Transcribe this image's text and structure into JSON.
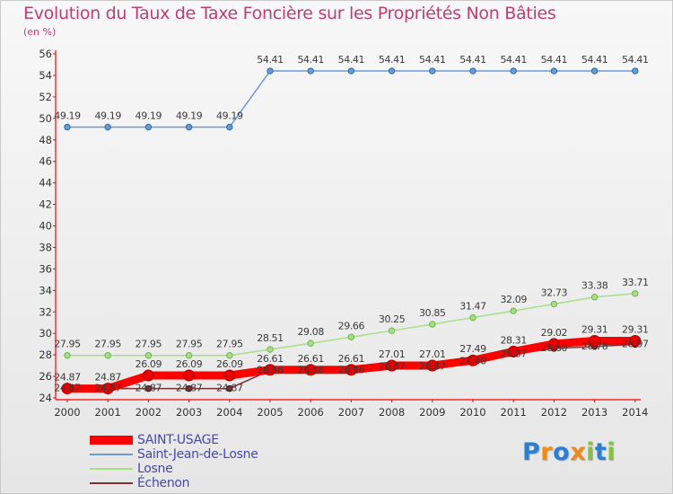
{
  "title": "Evolution du Taux de Taxe Foncière sur les Propriétés Non Bâties",
  "unit_label": "(en %)",
  "chart_data": {
    "type": "line",
    "title": "Evolution du Taux de Taxe Foncière sur les Propriétés Non Bâties",
    "ylabel": "(en %)",
    "xlabel": "",
    "categories": [
      "2000",
      "2001",
      "2002",
      "2003",
      "2004",
      "2005",
      "2006",
      "2007",
      "2008",
      "2009",
      "2010",
      "2011",
      "2012",
      "2013",
      "2014"
    ],
    "ylim": [
      24,
      56
    ],
    "yticks": [
      "24",
      "26",
      "28",
      "30",
      "32",
      "34",
      "36",
      "38",
      "40",
      "42",
      "44",
      "46",
      "48",
      "50",
      "52",
      "54",
      "56"
    ],
    "grid": false,
    "legend_position": "bottom-left",
    "series": [
      {
        "name": "SAINT-USAGE",
        "color": "#ff0000",
        "values": [
          24.87,
          24.87,
          26.09,
          26.09,
          26.09,
          26.61,
          26.61,
          26.61,
          27.01,
          27.01,
          27.49,
          28.31,
          29.02,
          29.31,
          29.31
        ],
        "labels": [
          "24.87",
          "24.87",
          "26.09",
          "26.09",
          "26.09",
          "26.61",
          "26.61",
          "26.61",
          "27.01",
          "27.01",
          "27.49",
          "28.31",
          "29.02",
          "29.31",
          "29.31"
        ]
      },
      {
        "name": "Saint-Jean-de-Losne",
        "color": "#6a9cd4",
        "values": [
          49.19,
          49.19,
          49.19,
          49.19,
          49.19,
          54.41,
          54.41,
          54.41,
          54.41,
          54.41,
          54.41,
          54.41,
          54.41,
          54.41,
          54.41
        ],
        "labels": [
          "49.19",
          "49.19",
          "49.19",
          "49.19",
          "49.19",
          "54.41",
          "54.41",
          "54.41",
          "54.41",
          "54.41",
          "54.41",
          "54.41",
          "54.41",
          "54.41",
          "54.41"
        ]
      },
      {
        "name": "Losne",
        "color": "#a6e086",
        "values": [
          27.95,
          27.95,
          27.95,
          27.95,
          27.95,
          28.51,
          29.08,
          29.66,
          30.25,
          30.85,
          31.47,
          32.09,
          32.73,
          33.38,
          33.71
        ],
        "labels": [
          "27.95",
          "27.95",
          "27.95",
          "27.95",
          "27.95",
          "28.51",
          "29.08",
          "29.66",
          "30.25",
          "30.85",
          "31.47",
          "32.09",
          "32.73",
          "33.38",
          "33.71"
        ]
      },
      {
        "name": "Échenon",
        "color": "#7d2f33",
        "values": [
          24.87,
          24.87,
          24.87,
          24.87,
          24.87,
          26.56,
          26.56,
          26.56,
          26.87,
          26.87,
          27.4,
          28.07,
          28.6,
          28.78,
          28.97
        ],
        "labels": [
          "24.87",
          "24.87",
          "24.87",
          "24.87",
          "24.87",
          "26.56",
          "26.56",
          "26.56",
          "26.87",
          "26.87",
          "27.40",
          "28.07",
          "28.60",
          "28.78",
          "28.97"
        ]
      }
    ]
  },
  "logo_text": "Proxiti"
}
